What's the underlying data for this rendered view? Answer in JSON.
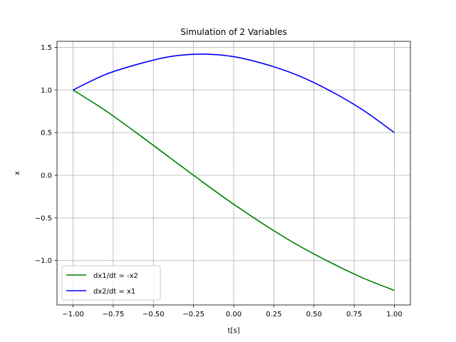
{
  "chart_data": {
    "type": "line",
    "title": "Simulation of 2 Variables",
    "xlabel": "t[s]",
    "ylabel": "x",
    "xlim": [
      -1.1,
      1.1
    ],
    "ylim": [
      -1.52,
      1.57
    ],
    "grid": true,
    "legend_position": "lower-left",
    "x_ticks": [
      -1.0,
      -0.75,
      -0.5,
      -0.25,
      0.0,
      0.25,
      0.5,
      0.75,
      1.0
    ],
    "x_tick_labels": [
      "−1.00",
      "−0.75",
      "−0.50",
      "−0.25",
      "0.00",
      "0.25",
      "0.50",
      "0.75",
      "1.00"
    ],
    "y_ticks": [
      -1.0,
      -0.5,
      0.0,
      0.5,
      1.0,
      1.5
    ],
    "y_tick_labels": [
      "−1.0",
      "−0.5",
      "0.0",
      "0.5",
      "1.0",
      "1.5"
    ],
    "series": [
      {
        "name": "dx1/dt = -x2",
        "color": "#008000",
        "x": [
          -1.0,
          -0.8,
          -0.6,
          -0.4,
          -0.2,
          0.0,
          0.2,
          0.4,
          0.6,
          0.8,
          1.0
        ],
        "y": [
          1.0,
          0.76,
          0.49,
          0.21,
          -0.07,
          -0.34,
          -0.59,
          -0.82,
          -1.02,
          -1.2,
          -1.35
        ]
      },
      {
        "name": "dx2/dt = x1",
        "color": "#0000ff",
        "x": [
          -1.0,
          -0.8,
          -0.6,
          -0.4,
          -0.2,
          0.0,
          0.2,
          0.4,
          0.6,
          0.8,
          1.0
        ],
        "y": [
          1.0,
          1.18,
          1.3,
          1.39,
          1.42,
          1.39,
          1.3,
          1.17,
          0.99,
          0.77,
          0.5
        ]
      }
    ]
  }
}
